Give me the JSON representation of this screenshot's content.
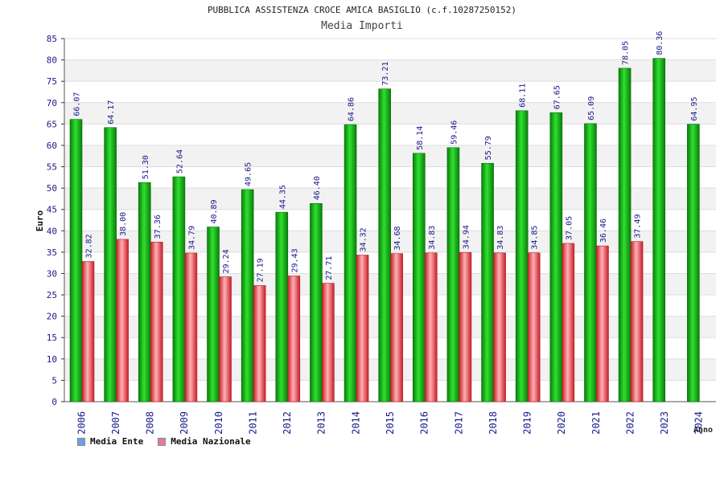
{
  "chart_data": {
    "type": "bar",
    "title": "PUBBLICA ASSISTENZA CROCE AMICA BASIGLIO (c.f.10287250152)",
    "subtitle": "Media Importi",
    "ylabel": "Euro",
    "xlabel": "Anno",
    "ylim": [
      0,
      85
    ],
    "ytick_step": 5,
    "grid": true,
    "legend_position": "bottom-left",
    "categories": [
      "2006",
      "2007",
      "2008",
      "2009",
      "2010",
      "2011",
      "2012",
      "2013",
      "2014",
      "2015",
      "2016",
      "2017",
      "2018",
      "2019",
      "2020",
      "2021",
      "2022",
      "2023",
      "2024"
    ],
    "series": [
      {
        "name": "Media Ente",
        "color": "#1fbf1f",
        "legend_color": "#6aa0e6",
        "values": [
          66.07,
          64.17,
          51.3,
          52.64,
          40.89,
          49.65,
          44.35,
          46.4,
          64.86,
          73.21,
          58.14,
          59.46,
          55.79,
          68.11,
          67.65,
          65.09,
          78.05,
          80.36,
          64.95
        ],
        "labels": [
          "66.07",
          "64.17",
          "51.30",
          "52.64",
          "40.89",
          "49.65",
          "44.35",
          "46.40",
          "64.86",
          "73.21",
          "58.14",
          "59.46",
          "55.79",
          "68.11",
          "67.65",
          "65.09",
          "78.05",
          "80.36",
          "64.95"
        ]
      },
      {
        "name": "Media Nazionale",
        "color": "#e8484f",
        "legend_color": "#e07aa8",
        "values": [
          32.82,
          38.0,
          37.36,
          34.79,
          29.24,
          27.19,
          29.43,
          27.71,
          34.32,
          34.68,
          34.83,
          34.94,
          34.83,
          34.85,
          37.05,
          36.46,
          37.49,
          null,
          null
        ],
        "labels": [
          "32.82",
          "38.00",
          "37.36",
          "34.79",
          "29.24",
          "27.19",
          "29.43",
          "27.71",
          "34.32",
          "34.68",
          "34.83",
          "34.94",
          "34.83",
          "34.85",
          "37.05",
          "36.46",
          "37.49",
          null,
          null
        ]
      }
    ]
  }
}
